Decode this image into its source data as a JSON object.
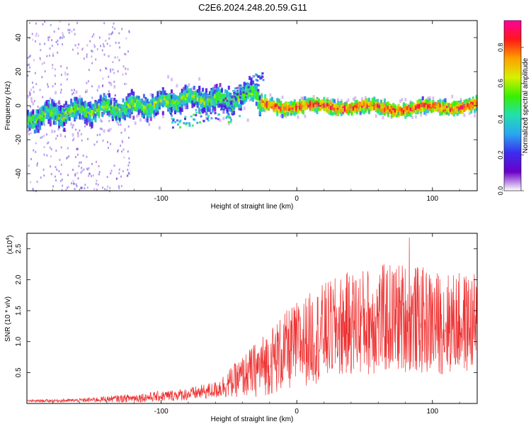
{
  "title": "C2E6.2024.248.20.59.G11",
  "chart_data": [
    {
      "type": "heatmap",
      "xlabel": "Height of straight line (km)",
      "ylabel": "Frequency (Hz)",
      "xlim": [
        -199,
        133
      ],
      "ylim": [
        -50,
        50
      ],
      "xticks": [
        -100,
        0,
        100
      ],
      "yticks": [
        -40,
        -20,
        0,
        20,
        40
      ],
      "colorbar": {
        "label": "Normalized spectral amplitude",
        "ticks": [
          0.0,
          0.2,
          0.4,
          0.6,
          0.8
        ],
        "range": [
          0,
          0.95
        ],
        "colormap": [
          "#ffffff",
          "#6a00c8",
          "#3c2cf0",
          "#2aa7f0",
          "#22dfb0",
          "#38f000",
          "#d8f000",
          "#ffa000",
          "#ff1818",
          "#ff00a0"
        ]
      },
      "ridge": [
        {
          "x": -199,
          "y": -8
        },
        {
          "x": -180,
          "y": -5
        },
        {
          "x": -160,
          "y": -3
        },
        {
          "x": -140,
          "y": -2
        },
        {
          "x": -120,
          "y": -1
        },
        {
          "x": -100,
          "y": 1
        },
        {
          "x": -85,
          "y": 4
        },
        {
          "x": -70,
          "y": 4
        },
        {
          "x": -55,
          "y": 3
        },
        {
          "x": -40,
          "y": 5
        },
        {
          "x": -30,
          "y": 8
        },
        {
          "x": -27,
          "y": 1
        },
        {
          "x": 0,
          "y": -1
        },
        {
          "x": 20,
          "y": 0
        },
        {
          "x": 40,
          "y": -1
        },
        {
          "x": 60,
          "y": -1
        },
        {
          "x": 80,
          "y": -2
        },
        {
          "x": 100,
          "y": -1
        },
        {
          "x": 133,
          "y": 0
        }
      ]
    },
    {
      "type": "line",
      "xlabel": "Height of straight line (km)",
      "ylabel": "SNR (10 * v/v)",
      "y_multiplier": "(x10",
      "y_multiplier_exp": "4",
      "y_multiplier_close": ")",
      "xlim": [
        -199,
        133
      ],
      "ylim": [
        0,
        2.75
      ],
      "xticks": [
        -100,
        0,
        100
      ],
      "yticks": [
        0.5,
        1.0,
        1.5,
        2.0,
        2.5
      ],
      "color": "#ee3030",
      "envelope": [
        {
          "x": -199,
          "mean": 0.04,
          "amp": 0.02
        },
        {
          "x": -160,
          "mean": 0.05,
          "amp": 0.03
        },
        {
          "x": -140,
          "mean": 0.07,
          "amp": 0.05
        },
        {
          "x": -110,
          "mean": 0.1,
          "amp": 0.08
        },
        {
          "x": -80,
          "mean": 0.15,
          "amp": 0.1
        },
        {
          "x": -60,
          "mean": 0.22,
          "amp": 0.14
        },
        {
          "x": -45,
          "mean": 0.38,
          "amp": 0.28
        },
        {
          "x": -30,
          "mean": 0.55,
          "amp": 0.45
        },
        {
          "x": -15,
          "mean": 0.75,
          "amp": 0.6
        },
        {
          "x": 0,
          "mean": 0.95,
          "amp": 0.7
        },
        {
          "x": 20,
          "mean": 1.15,
          "amp": 0.8
        },
        {
          "x": 40,
          "mean": 1.3,
          "amp": 0.85
        },
        {
          "x": 60,
          "mean": 1.35,
          "amp": 0.9
        },
        {
          "x": 80,
          "mean": 1.4,
          "amp": 0.9
        },
        {
          "x": 100,
          "mean": 1.3,
          "amp": 0.85
        },
        {
          "x": 133,
          "mean": 1.3,
          "amp": 0.8
        }
      ],
      "peak": {
        "x": 83,
        "y": 2.68
      }
    }
  ]
}
